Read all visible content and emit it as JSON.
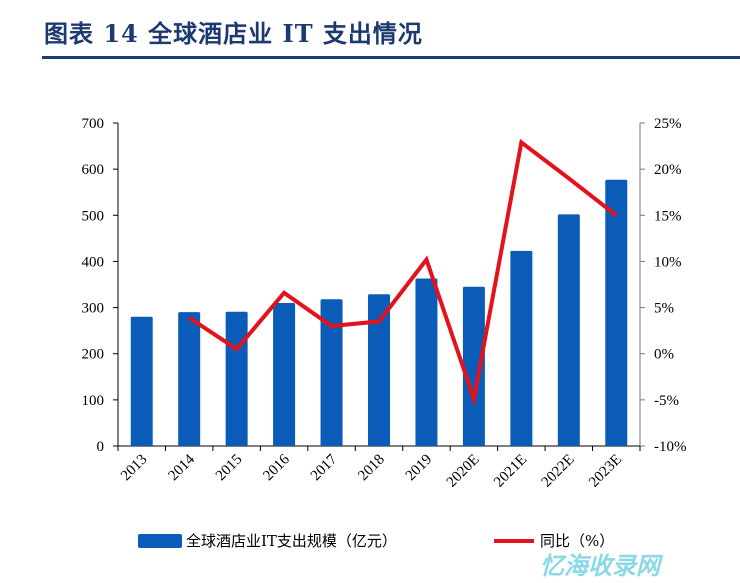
{
  "title": "图表 14  全球酒店业 IT 支出情况",
  "watermark": "忆海收录网",
  "colors": {
    "bar": "#0b5cb8",
    "line": "#e3121b",
    "title": "#1c3a70"
  },
  "chart_data": {
    "type": "bar+line",
    "categories": [
      "2013",
      "2014",
      "2015",
      "2016",
      "2017",
      "2018",
      "2019",
      "2020E",
      "2021E",
      "2022E",
      "2023E"
    ],
    "series": [
      {
        "name": "全球酒店业IT支出规模（亿元）",
        "type": "bar",
        "axis": "left",
        "values": [
          280,
          290,
          291,
          310,
          318,
          329,
          363,
          345,
          423,
          502,
          577
        ]
      },
      {
        "name": "同比（%）",
        "type": "line",
        "axis": "right",
        "values": [
          null,
          3.9,
          0.5,
          6.6,
          3.0,
          3.5,
          10.2,
          -4.9,
          22.9,
          19.0,
          15.0
        ]
      }
    ],
    "left_axis": {
      "min": 0,
      "max": 700,
      "ticks": [
        "0",
        "100",
        "200",
        "300",
        "400",
        "500",
        "600",
        "700"
      ]
    },
    "right_axis": {
      "min": -10,
      "max": 25,
      "ticks": [
        "-10%",
        "-5%",
        "0%",
        "5%",
        "10%",
        "15%",
        "20%",
        "25%"
      ]
    },
    "grid": false,
    "legend": "bottom"
  }
}
